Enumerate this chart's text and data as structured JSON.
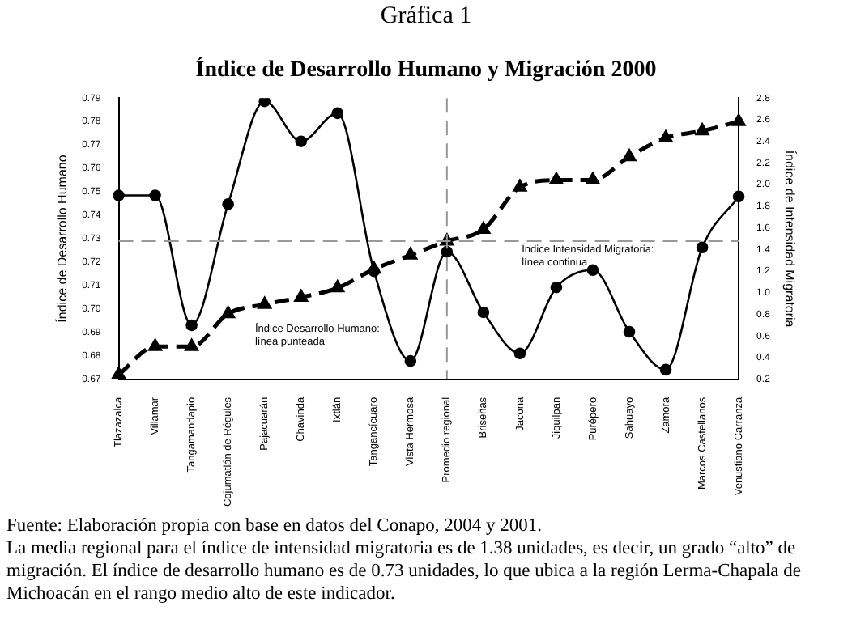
{
  "chart_data": {
    "type": "line",
    "title": "Gráfica 1",
    "subtitle": "Índice de Desarrollo Humano y Migración 2000",
    "ylabel": "Índice de Desarrollo Humano",
    "y2label": "Índice de Intensidad Migratoria",
    "categories": [
      "Tlazazalca",
      "Villamar",
      "Tangamandapio",
      "Cojumatlán de Régules",
      "Pajacuarán",
      "Chavinda",
      "Ixtlán",
      "Tangancícuaro",
      "Vista Hermosa",
      "Promedio regional",
      "Briseñas",
      "Jacona",
      "Jiquilpan",
      "Purépero",
      "Sahuayo",
      "Zamora",
      "Marcos Castellanos",
      "Venustiano Carranza"
    ],
    "series": [
      {
        "color": "#000000",
        "axis": "y",
        "line_style": "dashed",
        "marker": "triangle",
        "values": [
          0.672,
          0.684,
          0.684,
          0.698,
          0.702,
          0.705,
          0.709,
          0.717,
          0.723,
          0.729,
          0.734,
          0.752,
          0.755,
          0.755,
          0.765,
          0.773,
          0.776,
          0.78
        ]
      },
      {
        "color": "#000000",
        "axis": "y2",
        "line_style": "solid",
        "marker": "circle",
        "values": [
          1.9,
          1.9,
          0.7,
          1.82,
          2.77,
          2.4,
          2.66,
          1.2,
          0.37,
          1.38,
          0.82,
          0.44,
          1.05,
          1.21,
          0.64,
          0.29,
          1.42,
          1.89
        ]
      }
    ],
    "ylim": [
      0.67,
      0.79
    ],
    "yticks": [
      {
        "value": 0.67,
        "label": "0.67"
      },
      {
        "value": 0.68,
        "label": "0.68"
      },
      {
        "value": 0.69,
        "label": "0.69"
      },
      {
        "value": 0.7,
        "label": "0.70"
      },
      {
        "value": 0.71,
        "label": "0.71"
      },
      {
        "value": 0.72,
        "label": "0.72"
      },
      {
        "value": 0.73,
        "label": "0.73"
      },
      {
        "value": 0.74,
        "label": "0.74"
      },
      {
        "value": 0.75,
        "label": "0.75"
      },
      {
        "value": 0.76,
        "label": "0.76"
      },
      {
        "value": 0.77,
        "label": "0.77"
      },
      {
        "value": 0.78,
        "label": "0.78"
      },
      {
        "value": 0.79,
        "label": "0.79"
      }
    ],
    "y2lim": [
      0.2,
      2.8
    ],
    "y2ticks": [
      {
        "value": 0.2,
        "label": "0.2"
      },
      {
        "value": 0.4,
        "label": "0.4"
      },
      {
        "value": 0.6,
        "label": "0.6"
      },
      {
        "value": 0.8,
        "label": "0.8"
      },
      {
        "value": 1.0,
        "label": "1.0"
      },
      {
        "value": 1.2,
        "label": "1.2"
      },
      {
        "value": 1.4,
        "label": "1.4"
      },
      {
        "value": 1.6,
        "label": "1.6"
      },
      {
        "value": 1.8,
        "label": "1.8"
      },
      {
        "value": 2.0,
        "label": "2.0"
      },
      {
        "value": 2.2,
        "label": "2.2"
      },
      {
        "value": 2.4,
        "label": "2.4"
      },
      {
        "value": 2.6,
        "label": "2.6"
      },
      {
        "value": 2.8,
        "label": "2.8"
      }
    ],
    "ref_lines": [
      {
        "axis": "x",
        "value": "Promedio regional",
        "color": "#999999",
        "line_style": "dashed"
      },
      {
        "axis": "y",
        "value": 0.729,
        "color": "#999999",
        "line_style": "dashed"
      }
    ],
    "grid": false,
    "legend": false,
    "annotations": [
      "Índice Desarrollo Humano: línea punteada",
      "Índice Intensidad Migratoria: línea continua",
      "Fuente: Elaboración propia con base en datos del Conapo, 2004 y 2001.",
      "La media regional para el índice de intensidad migratoria es de 1.38 unidades, es decir, un grado “alto” de migración. El índice de desarrollo humano es de 0.73 unidades, lo que ubica a la región Lerma-Chapala de Michoacán en el rango medio alto de este indicador."
    ]
  }
}
